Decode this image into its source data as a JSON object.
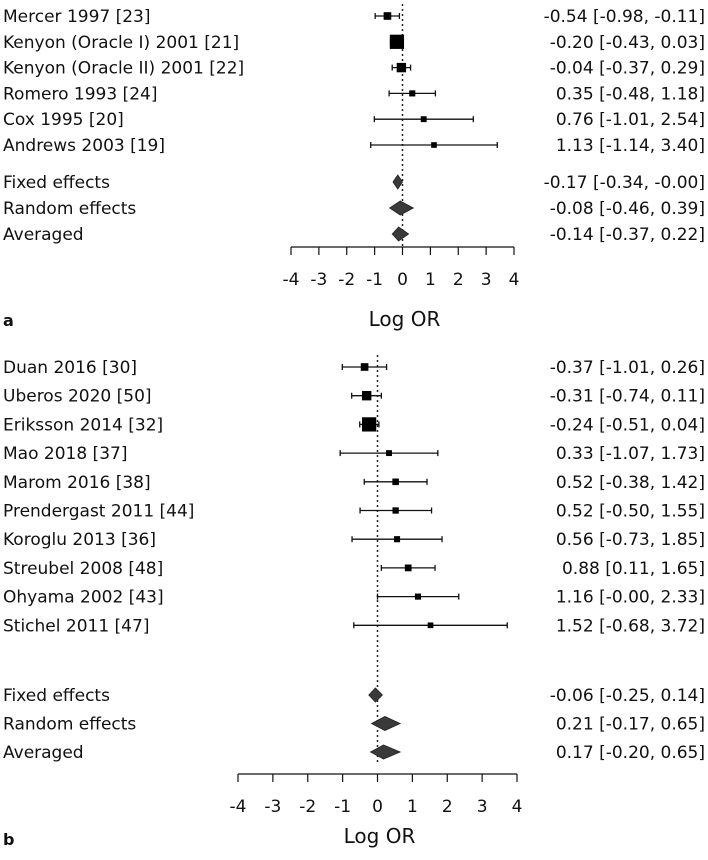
{
  "chart_data": [
    {
      "type": "forest",
      "panel_label": "a",
      "xlabel": "Log OR",
      "xlim": [
        -4,
        4
      ],
      "ticks": [
        "-4",
        "-3",
        "-2",
        "-1",
        "0",
        "1",
        "2",
        "3",
        "4"
      ],
      "reference_line": 0,
      "studies": [
        {
          "label": "Mercer 1997 [23]",
          "est": -0.54,
          "lo": -0.98,
          "hi": -0.11,
          "weight": 0.12,
          "text": "-0.54 [-0.98, -0.11]"
        },
        {
          "label": "Kenyon (Oracle I) 2001 [21]",
          "est": -0.2,
          "lo": -0.43,
          "hi": 0.03,
          "weight": 0.42,
          "text": "-0.20 [-0.43, 0.03]"
        },
        {
          "label": "Kenyon (Oracle II) 2001 [22]",
          "est": -0.04,
          "lo": -0.37,
          "hi": 0.29,
          "weight": 0.2,
          "text": "-0.04 [-0.37, 0.29]"
        },
        {
          "label": "Romero 1993 [24]",
          "est": 0.35,
          "lo": -0.48,
          "hi": 1.18,
          "weight": 0.05,
          "text": "0.35 [-0.48, 1.18]"
        },
        {
          "label": "Cox 1995 [20]",
          "est": 0.76,
          "lo": -1.01,
          "hi": 2.54,
          "weight": 0.04,
          "text": "0.76 [-1.01, 2.54]"
        },
        {
          "label": "Andrews 2003 [19]",
          "est": 1.13,
          "lo": -1.14,
          "hi": 3.4,
          "weight": 0.03,
          "text": "1.13 [-1.14, 3.40]"
        }
      ],
      "summaries": [
        {
          "label": "Fixed effects",
          "est": -0.17,
          "lo": -0.34,
          "hi": -0.0,
          "text": "-0.17 [-0.34, -0.00]"
        },
        {
          "label": "Random effects",
          "est": -0.08,
          "lo": -0.46,
          "hi": 0.39,
          "text": "-0.08 [-0.46, 0.39]"
        },
        {
          "label": "Averaged",
          "est": -0.14,
          "lo": -0.37,
          "hi": 0.22,
          "text": "-0.14 [-0.37, 0.22]"
        }
      ]
    },
    {
      "type": "forest",
      "panel_label": "b",
      "xlabel": "Log OR",
      "xlim": [
        -4,
        4
      ],
      "ticks": [
        "-4",
        "-3",
        "-2",
        "-1",
        "0",
        "1",
        "2",
        "3",
        "4"
      ],
      "reference_line": 0,
      "studies": [
        {
          "label": "Duan 2016 [30]",
          "est": -0.37,
          "lo": -1.01,
          "hi": 0.26,
          "weight": 0.12,
          "text": "-0.37 [-1.01, 0.26]"
        },
        {
          "label": "Uberos 2020 [50]",
          "est": -0.31,
          "lo": -0.74,
          "hi": 0.11,
          "weight": 0.2,
          "text": "-0.31 [-0.74, 0.11]"
        },
        {
          "label": "Eriksson 2014 [32]",
          "est": -0.24,
          "lo": -0.51,
          "hi": 0.04,
          "weight": 0.42,
          "text": "-0.24 [-0.51, 0.04]"
        },
        {
          "label": "Mao 2018 [37]",
          "est": 0.33,
          "lo": -1.07,
          "hi": 1.73,
          "weight": 0.04,
          "text": "0.33 [-1.07, 1.73]"
        },
        {
          "label": "Marom 2016 [38]",
          "est": 0.52,
          "lo": -0.38,
          "hi": 1.42,
          "weight": 0.07,
          "text": "0.52 [-0.38, 1.42]"
        },
        {
          "label": "Prendergast 2011 [44]",
          "est": 0.52,
          "lo": -0.5,
          "hi": 1.55,
          "weight": 0.06,
          "text": "0.52 [-0.50, 1.55]"
        },
        {
          "label": "Koroglu 2013 [36]",
          "est": 0.56,
          "lo": -0.73,
          "hi": 1.85,
          "weight": 0.05,
          "text": "0.56 [-0.73, 1.85]"
        },
        {
          "label": "Streubel 2008 [48]",
          "est": 0.88,
          "lo": 0.11,
          "hi": 1.65,
          "weight": 0.08,
          "text": "0.88 [0.11, 1.65]"
        },
        {
          "label": "Ohyama 2002 [43]",
          "est": 1.16,
          "lo": -0.0,
          "hi": 2.33,
          "weight": 0.05,
          "text": "1.16 [-0.00, 2.33]"
        },
        {
          "label": "Stichel 2011 [47]",
          "est": 1.52,
          "lo": -0.68,
          "hi": 3.72,
          "weight": 0.03,
          "text": "1.52 [-0.68, 3.72]"
        }
      ],
      "summaries": [
        {
          "label": "Fixed effects",
          "est": -0.06,
          "lo": -0.25,
          "hi": 0.14,
          "text": "-0.06 [-0.25, 0.14]"
        },
        {
          "label": "Random effects",
          "est": 0.21,
          "lo": -0.17,
          "hi": 0.65,
          "text": "0.21 [-0.17, 0.65]"
        },
        {
          "label": "Averaged",
          "est": 0.17,
          "lo": -0.2,
          "hi": 0.65,
          "text": "0.17 [-0.20, 0.65]"
        }
      ]
    }
  ]
}
